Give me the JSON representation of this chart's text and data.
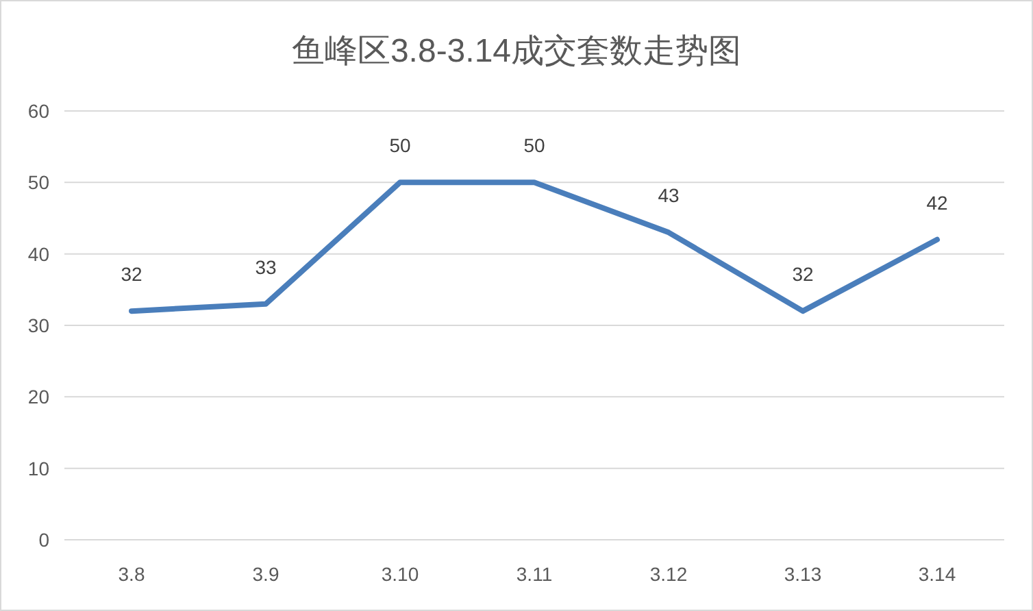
{
  "chart_data": {
    "type": "line",
    "title": "鱼峰区3.8-3.14成交套数走势图",
    "categories": [
      "3.8",
      "3.9",
      "3.10",
      "3.11",
      "3.12",
      "3.13",
      "3.14"
    ],
    "series": [
      {
        "color": "#4a7ebb",
        "values": [
          32,
          33,
          50,
          50,
          43,
          32,
          42
        ]
      }
    ],
    "ylim": [
      0,
      60
    ],
    "yticks": [
      0,
      10,
      20,
      30,
      40,
      50,
      60
    ],
    "grid": "y",
    "data_labels": true,
    "marker": "none",
    "line_style": "solid"
  }
}
